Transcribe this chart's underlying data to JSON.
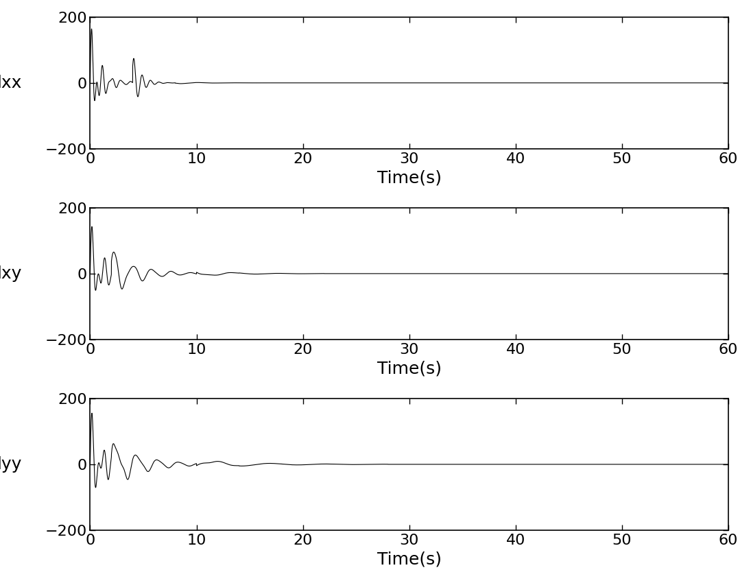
{
  "subplot_labels": [
    "dxx",
    "dxy",
    "dyy"
  ],
  "xlabel": "Time(s)",
  "xlim": [
    0,
    60
  ],
  "ylim": [
    -200,
    200
  ],
  "yticks": [
    -200,
    0,
    200
  ],
  "xticks": [
    0,
    10,
    20,
    30,
    40,
    50,
    60
  ],
  "linecolor": "#000000",
  "linewidth": 0.8,
  "figsize": [
    10.95,
    8.31
  ],
  "dpi": 100,
  "background": "#ffffff",
  "ylabel_fontsize": 18,
  "xlabel_fontsize": 18,
  "tick_labelsize": 16
}
